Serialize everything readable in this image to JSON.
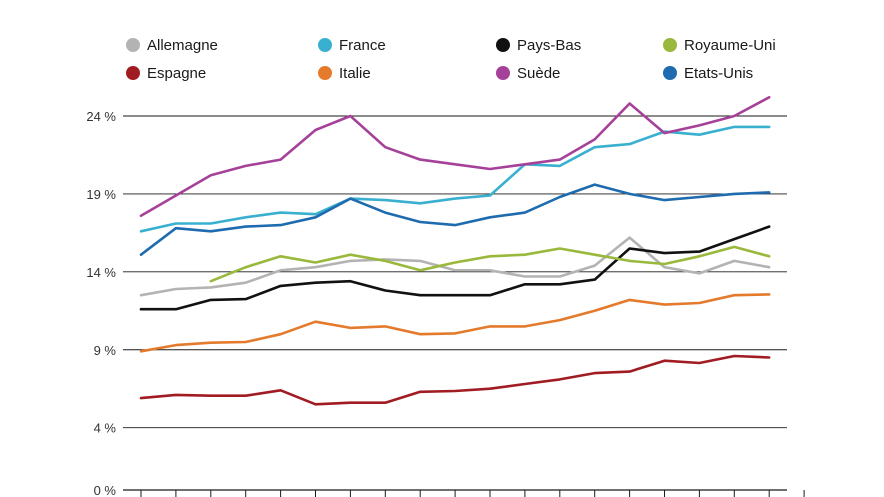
{
  "chart_data": {
    "type": "line",
    "title": "",
    "xlabel": "",
    "ylabel": "",
    "ylim": [
      0,
      26
    ],
    "yticks": [
      0,
      4,
      9,
      14,
      19,
      24
    ],
    "ytick_labels": [
      "0 %",
      "4 %",
      "9 %",
      "14 %",
      "19 %",
      "24 %"
    ],
    "grid": true,
    "legend_position": "top",
    "x": [
      1,
      2,
      3,
      4,
      5,
      6,
      7,
      8,
      9,
      10,
      11,
      12,
      13,
      14,
      15,
      16,
      17,
      18,
      19,
      20
    ],
    "series": [
      {
        "name": "Allemagne",
        "color": "#b3b3b3",
        "values": [
          12.5,
          12.9,
          13.0,
          13.3,
          14.1,
          14.3,
          14.7,
          14.8,
          14.7,
          14.1,
          14.1,
          13.7,
          13.7,
          14.4,
          16.2,
          14.3,
          13.9,
          14.7,
          14.3,
          null
        ]
      },
      {
        "name": "Espagne",
        "color": "#a01c22",
        "values": [
          5.9,
          6.1,
          6.05,
          6.05,
          6.4,
          5.5,
          5.6,
          5.6,
          6.3,
          6.35,
          6.5,
          6.8,
          7.1,
          7.5,
          7.6,
          8.3,
          8.15,
          8.6,
          8.5,
          null
        ]
      },
      {
        "name": "France",
        "color": "#3ab0d1",
        "values": [
          16.6,
          17.1,
          17.1,
          17.5,
          17.8,
          17.7,
          18.7,
          18.6,
          18.4,
          18.7,
          18.9,
          20.9,
          20.8,
          22.0,
          22.2,
          23.0,
          22.8,
          23.3,
          23.3,
          null
        ]
      },
      {
        "name": "Italie",
        "color": "#e47a2c",
        "values": [
          8.9,
          9.3,
          9.45,
          9.5,
          10.0,
          10.8,
          10.4,
          10.5,
          10.0,
          10.05,
          10.5,
          10.5,
          10.9,
          11.5,
          12.2,
          11.9,
          12.0,
          12.5,
          12.55,
          null
        ]
      },
      {
        "name": "Pays-Bas",
        "color": "#111111",
        "values": [
          11.6,
          11.6,
          12.2,
          12.25,
          13.1,
          13.3,
          13.4,
          12.8,
          12.5,
          12.5,
          12.5,
          13.2,
          13.2,
          13.5,
          15.5,
          15.2,
          15.3,
          16.1,
          16.9,
          null
        ]
      },
      {
        "name": "Suède",
        "color": "#a6419a",
        "values": [
          17.6,
          18.9,
          20.2,
          20.8,
          21.2,
          23.1,
          24.0,
          22.0,
          21.2,
          20.9,
          20.6,
          20.9,
          21.2,
          22.5,
          24.8,
          22.9,
          23.4,
          24.0,
          25.2,
          null
        ]
      },
      {
        "name": "Royaume-Uni",
        "color": "#99b83c",
        "values": [
          null,
          null,
          13.4,
          14.3,
          15.0,
          14.6,
          15.1,
          14.7,
          14.1,
          14.6,
          15.0,
          15.1,
          15.5,
          15.1,
          14.7,
          14.5,
          15.0,
          15.6,
          15.0,
          null
        ]
      },
      {
        "name": "Etats-Unis",
        "color": "#1e6bb0",
        "values": [
          15.1,
          16.8,
          16.6,
          16.9,
          17.0,
          17.5,
          18.7,
          17.8,
          17.2,
          17.0,
          17.5,
          17.8,
          18.8,
          19.6,
          19.0,
          18.6,
          18.8,
          19.0,
          19.1,
          null
        ]
      }
    ]
  }
}
